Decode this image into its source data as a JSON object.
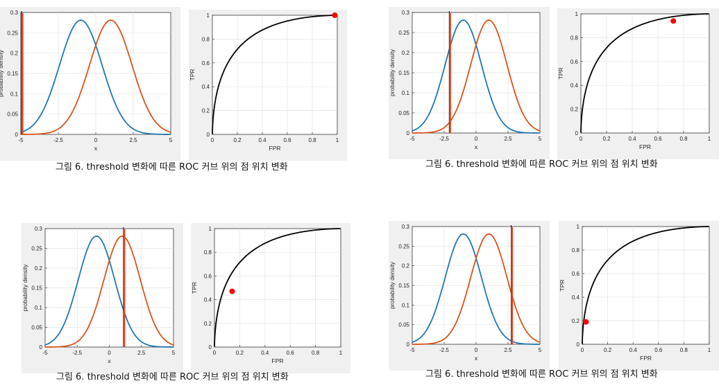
{
  "chart_data": [
    {
      "type": "figure-pair",
      "caption": "그림 6. threshold 변화에 따른 ROC 커브 위의 점 위치 변화",
      "left": {
        "type": "line",
        "xlabel": "x",
        "ylabel": "probability density",
        "xlim": [
          -5,
          5
        ],
        "ylim": [
          0,
          0.3
        ],
        "xticks": [
          "-5",
          "-2.5",
          "0",
          "2.5",
          "5"
        ],
        "yticks": [
          "0",
          "0.05",
          "0.1",
          "0.15",
          "0.2",
          "0.25",
          "0.3"
        ],
        "series": [
          {
            "type": "normal-pdf",
            "mean": -1,
            "sd": 1.42,
            "color": "#1f77b4"
          },
          {
            "type": "normal-pdf",
            "mean": 1,
            "sd": 1.42,
            "color": "#d95319"
          }
        ],
        "threshold": -4.95,
        "threshold_color": "#e8401c"
      },
      "right": {
        "type": "line",
        "xlabel": "FPR",
        "ylabel": "TPR",
        "xlim": [
          0,
          1
        ],
        "ylim": [
          0,
          1
        ],
        "xticks": [
          "0",
          "0.2",
          "0.4",
          "0.6",
          "0.8",
          "1"
        ],
        "yticks": [
          "0",
          "0.2",
          "0.4",
          "0.6",
          "0.8",
          "1"
        ],
        "point": {
          "x": 0.98,
          "y": 1.0,
          "color": "#ff0000"
        }
      }
    },
    {
      "type": "figure-pair",
      "caption": "그림 6. threshold 변화에 따른 ROC 커브 위의 점 위치 변화",
      "left": {
        "type": "line",
        "xlabel": "x",
        "ylabel": "probability density",
        "xlim": [
          -5,
          5
        ],
        "ylim": [
          0,
          0.3
        ],
        "xticks": [
          "-5",
          "-2.5",
          "0",
          "2.5",
          "5"
        ],
        "yticks": [
          "0",
          "0.05",
          "0.1",
          "0.15",
          "0.2",
          "0.25",
          "0.3"
        ],
        "series": [
          {
            "type": "normal-pdf",
            "mean": -1,
            "sd": 1.42,
            "color": "#1f77b4"
          },
          {
            "type": "normal-pdf",
            "mean": 1,
            "sd": 1.42,
            "color": "#d95319"
          }
        ],
        "threshold": -2.1,
        "threshold_color": "#e8401c"
      },
      "right": {
        "type": "line",
        "xlabel": "FPR",
        "ylabel": "TPR",
        "xlim": [
          0,
          1
        ],
        "ylim": [
          0,
          1
        ],
        "xticks": [
          "0",
          "0.2",
          "0.4",
          "0.6",
          "0.8",
          "1"
        ],
        "yticks": [
          "0",
          "0.2",
          "0.4",
          "0.6",
          "0.8",
          "1"
        ],
        "point": {
          "x": 0.72,
          "y": 0.94,
          "color": "#ff0000"
        }
      }
    },
    {
      "type": "figure-pair",
      "caption": "그림 6. threshold 변화에 따른 ROC 커브 위의 점 위치 변화",
      "left": {
        "type": "line",
        "xlabel": "x",
        "ylabel": "probability density",
        "xlim": [
          -5,
          5
        ],
        "ylim": [
          0,
          0.3
        ],
        "xticks": [
          "-5",
          "-2.5",
          "0",
          "2.5",
          "5"
        ],
        "yticks": [
          "0",
          "0.05",
          "0.1",
          "0.15",
          "0.2",
          "0.25",
          "0.3"
        ],
        "series": [
          {
            "type": "normal-pdf",
            "mean": -1,
            "sd": 1.42,
            "color": "#1f77b4"
          },
          {
            "type": "normal-pdf",
            "mean": 1,
            "sd": 1.42,
            "color": "#d95319"
          }
        ],
        "threshold": 1.1,
        "threshold_color": "#e8401c"
      },
      "right": {
        "type": "line",
        "xlabel": "FPR",
        "ylabel": "TPR",
        "xlim": [
          0,
          1
        ],
        "ylim": [
          0,
          1
        ],
        "xticks": [
          "0",
          "0.2",
          "0.4",
          "0.6",
          "0.8",
          "1"
        ],
        "yticks": [
          "0",
          "0.2",
          "0.4",
          "0.6",
          "0.8",
          "1"
        ],
        "point": {
          "x": 0.14,
          "y": 0.47,
          "color": "#ff0000"
        }
      }
    },
    {
      "type": "figure-pair",
      "caption": "그림 6. threshold 변화에 따른 ROC 커브 위의 점 위치 변화",
      "left": {
        "type": "line",
        "xlabel": "x",
        "ylabel": "probability density",
        "xlim": [
          -5,
          5
        ],
        "ylim": [
          0,
          0.3
        ],
        "xticks": [
          "-5",
          "-2.5",
          "0",
          "2.5",
          "5"
        ],
        "yticks": [
          "0",
          "0.05",
          "0.1",
          "0.15",
          "0.2",
          "0.25",
          "0.3"
        ],
        "series": [
          {
            "type": "normal-pdf",
            "mean": -1,
            "sd": 1.42,
            "color": "#1f77b4"
          },
          {
            "type": "normal-pdf",
            "mean": 1,
            "sd": 1.42,
            "color": "#d95319"
          }
        ],
        "threshold": 2.75,
        "threshold_color": "#e8401c"
      },
      "right": {
        "type": "line",
        "xlabel": "FPR",
        "ylabel": "TPR",
        "xlim": [
          0,
          1
        ],
        "ylim": [
          0,
          1
        ],
        "xticks": [
          "0",
          "0.2",
          "0.4",
          "0.6",
          "0.8",
          "1"
        ],
        "yticks": [
          "0",
          "0.2",
          "0.4",
          "0.6",
          "0.8",
          "1"
        ],
        "point": {
          "x": 0.03,
          "y": 0.19,
          "color": "#ff0000"
        }
      }
    }
  ]
}
